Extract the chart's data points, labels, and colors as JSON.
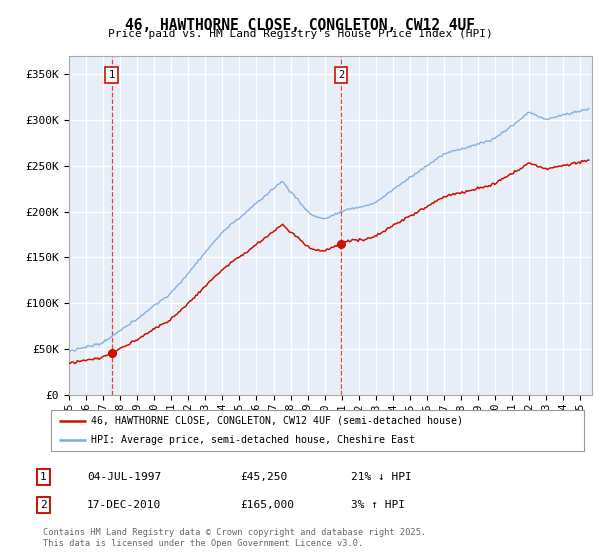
{
  "title": "46, HAWTHORNE CLOSE, CONGLETON, CW12 4UF",
  "subtitle": "Price paid vs. HM Land Registry's House Price Index (HPI)",
  "legend_line1": "46, HAWTHORNE CLOSE, CONGLETON, CW12 4UF (semi-detached house)",
  "legend_line2": "HPI: Average price, semi-detached house, Cheshire East",
  "annotation1_label": "1",
  "annotation1_date": "04-JUL-1997",
  "annotation1_price": "£45,250",
  "annotation1_hpi": "21% ↓ HPI",
  "annotation2_label": "2",
  "annotation2_date": "17-DEC-2010",
  "annotation2_price": "£165,000",
  "annotation2_hpi": "3% ↑ HPI",
  "footer": "Contains HM Land Registry data © Crown copyright and database right 2025.\nThis data is licensed under the Open Government Licence v3.0.",
  "hpi_color": "#7aaadd",
  "price_color": "#cc1100",
  "background_color": "#e8eef8",
  "ylim": [
    0,
    370000
  ],
  "yticks": [
    0,
    50000,
    100000,
    150000,
    200000,
    250000,
    300000,
    350000
  ],
  "ytick_labels": [
    "£0",
    "£50K",
    "£100K",
    "£150K",
    "£200K",
    "£250K",
    "£300K",
    "£350K"
  ],
  "sale1_year": 1997.5,
  "sale1_price": 45250,
  "sale2_year": 2010.96,
  "sale2_price": 165000
}
